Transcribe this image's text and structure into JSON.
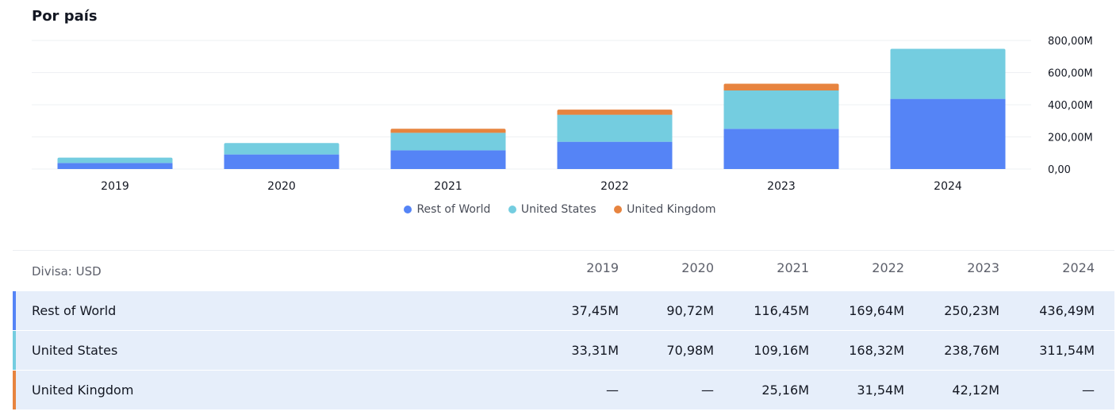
{
  "title": "Por país",
  "colors": {
    "rest_of_world": "#5584f6",
    "united_states": "#74cde0",
    "united_kingdom": "#e7843f"
  },
  "chart_data": {
    "type": "bar",
    "stacked": true,
    "categories": [
      "2019",
      "2020",
      "2021",
      "2022",
      "2023",
      "2024"
    ],
    "series": [
      {
        "name": "Rest of World",
        "color": "#5584f6",
        "values": [
          37.45,
          90.72,
          116.45,
          169.64,
          250.23,
          436.49
        ]
      },
      {
        "name": "United States",
        "color": "#74cde0",
        "values": [
          33.31,
          70.98,
          109.16,
          168.32,
          238.76,
          311.54
        ]
      },
      {
        "name": "United Kingdom",
        "color": "#e7843f",
        "values": [
          null,
          null,
          25.16,
          31.54,
          42.12,
          null
        ]
      }
    ],
    "y_ticks": [
      "0,00",
      "200,00M",
      "400,00M",
      "600,00M",
      "800,00M"
    ],
    "ylim": [
      0,
      800
    ],
    "y_axis_side": "right",
    "grid": true,
    "legend_position": "bottom-center"
  },
  "table": {
    "currency_label": "Divisa: USD",
    "years": [
      "2019",
      "2020",
      "2021",
      "2022",
      "2023",
      "2024"
    ],
    "rows": [
      {
        "name": "Rest of World",
        "values": [
          "37,45M",
          "90,72M",
          "116,45M",
          "169,64M",
          "250,23M",
          "436,49M"
        ]
      },
      {
        "name": "United States",
        "values": [
          "33,31M",
          "70,98M",
          "109,16M",
          "168,32M",
          "238,76M",
          "311,54M"
        ]
      },
      {
        "name": "United Kingdom",
        "values": [
          "—",
          "—",
          "25,16M",
          "31,54M",
          "42,12M",
          "—"
        ]
      }
    ]
  }
}
